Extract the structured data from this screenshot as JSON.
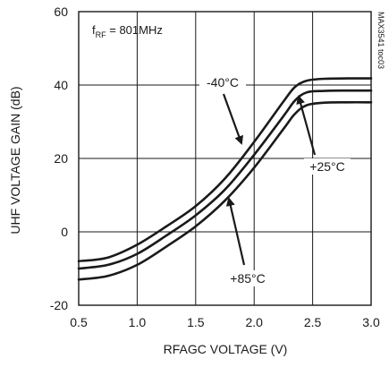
{
  "chart_data": {
    "type": "line",
    "title": "",
    "xlabel": "RFAGC VOLTAGE (V)",
    "ylabel": "UHF VOLTAGE GAIN (dB)",
    "xlim": [
      0.5,
      3.0
    ],
    "ylim": [
      -20,
      60
    ],
    "x_ticks": [
      "0.5",
      "1.0",
      "1.5",
      "2.0",
      "2.5",
      "3.0"
    ],
    "y_ticks": [
      "-20",
      "0",
      "20",
      "40",
      "60"
    ],
    "grid": true,
    "parameter": {
      "main": "f",
      "sub": "RF",
      "rest": " = 801MHz"
    },
    "side_label": "MAX3541 toc03",
    "x": [
      0.5,
      0.75,
      1.0,
      1.25,
      1.5,
      1.75,
      2.0,
      2.25,
      2.35,
      2.45,
      2.6,
      2.8,
      3.0
    ],
    "series": [
      {
        "name": "-40°C",
        "values": [
          -8.0,
          -7.0,
          -3.5,
          1.5,
          7.0,
          14.5,
          24.5,
          35.5,
          39.5,
          41.2,
          41.7,
          41.8,
          41.8
        ]
      },
      {
        "name": "+25°C",
        "values": [
          -10.0,
          -9.0,
          -6.0,
          -1.0,
          4.5,
          11.5,
          21.0,
          31.5,
          35.8,
          38.0,
          38.4,
          38.5,
          38.5
        ]
      },
      {
        "name": "+85°C",
        "values": [
          -13.0,
          -12.0,
          -9.0,
          -4.0,
          1.5,
          8.5,
          17.5,
          28.0,
          32.2,
          34.5,
          35.2,
          35.3,
          35.3
        ]
      }
    ],
    "annotations": [
      {
        "text": "-40°C",
        "series": 0
      },
      {
        "text": "+25°C",
        "series": 1
      },
      {
        "text": "+85°C",
        "series": 2
      }
    ]
  }
}
